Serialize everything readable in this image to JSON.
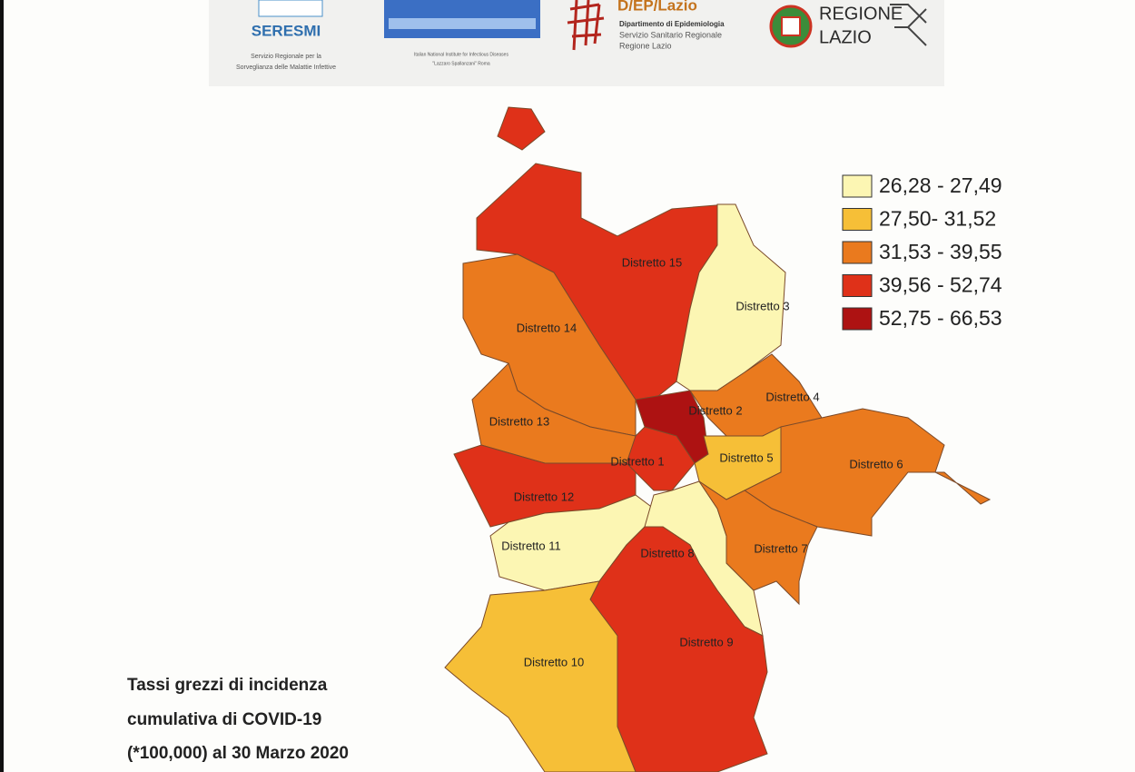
{
  "header": {
    "seresmi": {
      "title": "SERESMI",
      "subtitle_lines": [
        "Servizio Regionale per la",
        "Sorveglianza delle Malattie Infettive"
      ]
    },
    "inmi": {
      "subtitle_lines": [
        "Italian National Institute for Infectious Diseases",
        "\"Lazzaro Spallanzani\" Roma"
      ]
    },
    "dep": {
      "title": "D/EP/Lazio",
      "lines": [
        "Dipartimento di Epidemiologia",
        "Servizio Sanitario Regionale",
        "Regione Lazio"
      ]
    },
    "regione": {
      "lines": [
        "REGIONE",
        "LAZIO"
      ]
    }
  },
  "legend": [
    {
      "label": "26,28 - 27,49",
      "color": "#fcf6b3"
    },
    {
      "label": "27,50- 31,52",
      "color": "#f6bf37"
    },
    {
      "label": "31,53 - 39,55",
      "color": "#ea7a1e"
    },
    {
      "label": "39,56 - 52,74",
      "color": "#df3119"
    },
    {
      "label": "52,75 - 66,53",
      "color": "#ad1212"
    }
  ],
  "map": {
    "districts": [
      {
        "name": "Distretto 15",
        "color": "#df3119"
      },
      {
        "name": "Distretto 3",
        "color": "#fcf6b3"
      },
      {
        "name": "Distretto 14",
        "color": "#ea7a1e"
      },
      {
        "name": "Distretto 13",
        "color": "#ea7a1e"
      },
      {
        "name": "Distretto 2",
        "color": "#ad1212"
      },
      {
        "name": "Distretto 4",
        "color": "#ea7a1e"
      },
      {
        "name": "Distretto 1",
        "color": "#df3119"
      },
      {
        "name": "Distretto 5",
        "color": "#f6bf37"
      },
      {
        "name": "Distretto 6",
        "color": "#ea7a1e"
      },
      {
        "name": "Distretto 12",
        "color": "#df3119"
      },
      {
        "name": "Distretto 11",
        "color": "#fcf6b3"
      },
      {
        "name": "Distretto 8",
        "color": "#fcf6b3"
      },
      {
        "name": "Distretto 7",
        "color": "#ea7a1e"
      },
      {
        "name": "Distretto 9",
        "color": "#df3119"
      },
      {
        "name": "Distretto 10",
        "color": "#f6bf37"
      }
    ]
  },
  "caption": {
    "lines": [
      "Tassi grezzi di incidenza",
      "cumulativa di COVID-19",
      "(*100,000) al 30 Marzo 2020"
    ]
  }
}
